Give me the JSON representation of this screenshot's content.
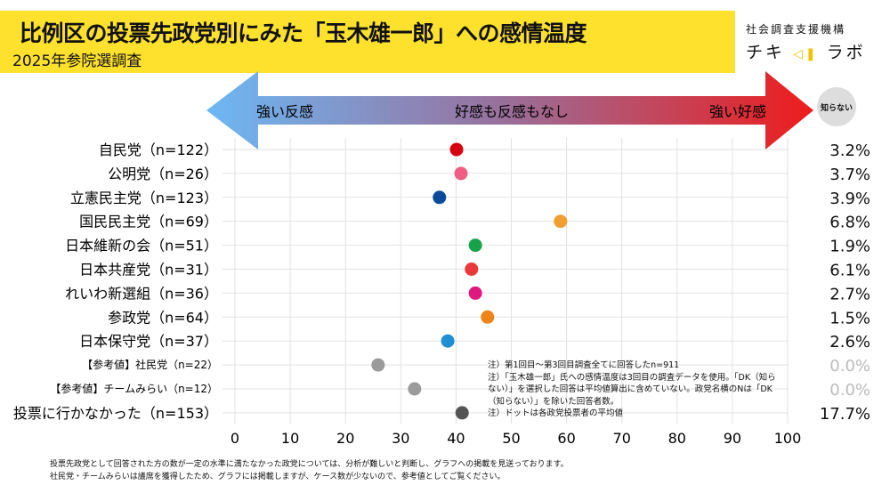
{
  "header": {
    "title": "比例区の投票先政党別にみた「玉木雄一郎」への感情温度",
    "subtitle": "2025年参院選調査",
    "org": "社会調査支援機構",
    "brand_left": "チキ",
    "brand_right": "ラボ"
  },
  "scale": {
    "left_label": "強い反感",
    "center_label": "好感も反感もなし",
    "right_label": "強い好感",
    "dk_label": "知らない"
  },
  "chart_data": {
    "type": "scatter",
    "xlim": [
      0,
      100
    ],
    "xticks": [
      "0",
      "10",
      "20",
      "30",
      "40",
      "50",
      "60",
      "70",
      "80",
      "90",
      "100"
    ],
    "grid": true,
    "categories": [
      "自民党（n=122）",
      "公明党（n=26）",
      "立憲民主党（n=123）",
      "国民民主党（n=69）",
      "日本維新の会（n=51）",
      "日本共産党（n=31）",
      "れいわ新選組（n=36）",
      "参政党（n=64）",
      "日本保守党（n=37）",
      "【参考値】社民党（n=22）",
      "【参考値】チームみらい（n=12）",
      "投票に行かなかった（n=153）"
    ],
    "values": [
      40.1,
      40.9,
      37.0,
      58.9,
      43.5,
      42.8,
      43.5,
      45.7,
      38.5,
      25.9,
      32.5,
      41.1
    ],
    "dk_percent": [
      "3.2%",
      "3.7%",
      "3.9%",
      "6.8%",
      "1.9%",
      "6.1%",
      "2.7%",
      "1.5%",
      "2.6%",
      "0.0%",
      "0.0%",
      "17.7%"
    ],
    "colors": [
      "#d7000f",
      "#ef5f84",
      "#0a4a9a",
      "#f0a030",
      "#16a34a",
      "#e83a3a",
      "#e0197f",
      "#ee8418",
      "#1e8fd5",
      "#9b9b9b",
      "#9b9b9b",
      "#555555"
    ],
    "reference_rows": [
      9,
      10
    ]
  },
  "notes": [
    "注）第1回目～第3回目調査全てに回答したn=911",
    "注）「玉木雄一郎」氏への感情温度は3回目の調査データを使用。「DK（知らない）」を選択した回答は平均値算出に含めていない。政党名横のNは「DK（知らない）」を除いた回答者数。",
    "注）ドットは各政党投票者の平均値"
  ],
  "footnotes": [
    "投票先政党として回答された方の数が一定の水準に満たなかった政党については、分析が難しいと判断し、グラフへの掲載を見送っております。",
    "社民党・チームみらいは議席を獲得したため、グラフには掲載しますが、ケース数が少ないので、参考値としてご覧ください。"
  ]
}
